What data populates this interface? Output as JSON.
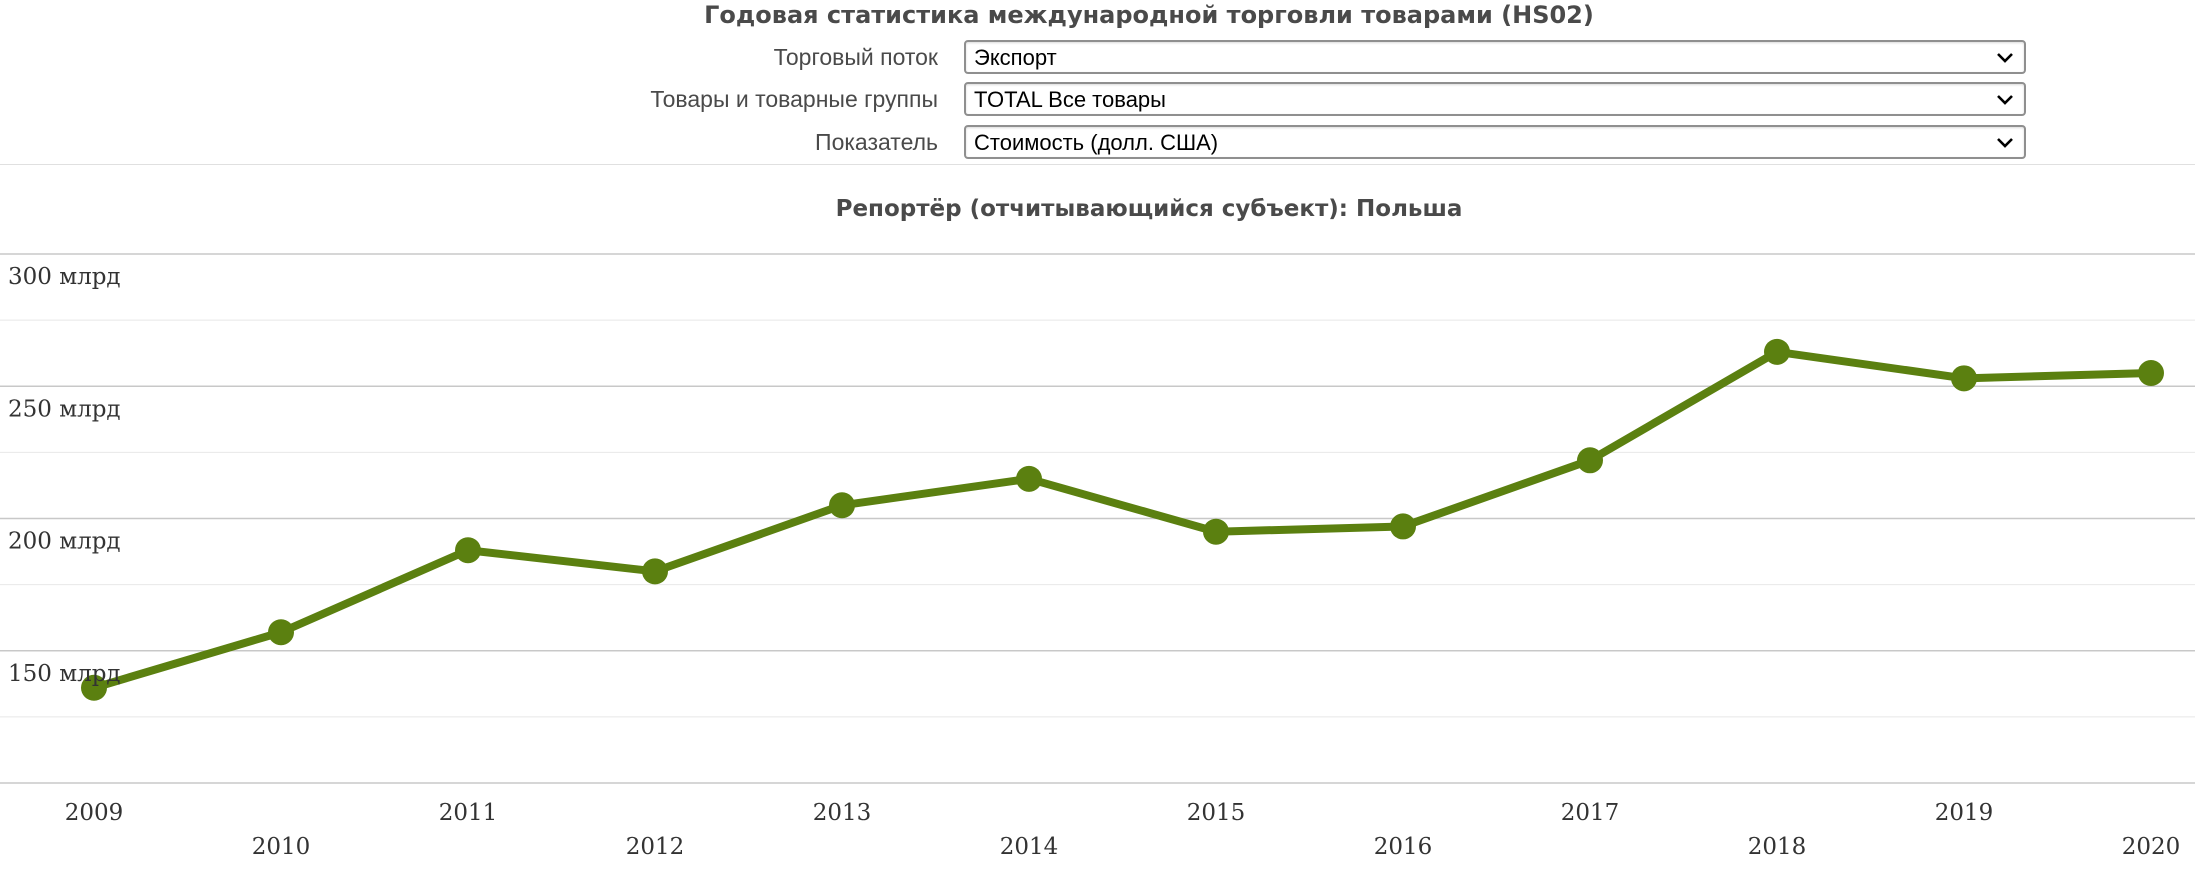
{
  "page": {
    "title": "Годовая статистика международной торговли товарами (HS02)"
  },
  "filters": [
    {
      "label": "Торговый поток",
      "value": "Экспорт"
    },
    {
      "label": "Товары и товарные группы",
      "value": "TOTAL Все товары"
    },
    {
      "label": "Показатель",
      "value": "Стоимость (долл. США)"
    }
  ],
  "colors": {
    "series": "#5b8010"
  },
  "chart_data": {
    "type": "line",
    "title": "Репортёр (отчитывающийся субъект): Польша",
    "xlabel": "",
    "ylabel": "",
    "x": [
      2009,
      2010,
      2011,
      2012,
      2013,
      2014,
      2015,
      2016,
      2017,
      2018,
      2019,
      2020
    ],
    "series": [
      {
        "values": [
          136,
          157,
          188,
          180,
          205,
          215,
          195,
          197,
          222,
          263,
          253,
          255
        ]
      }
    ],
    "ylim": [
      100,
      300
    ],
    "y_ticks": [
      150,
      200,
      250,
      300
    ],
    "y_tick_labels": [
      "150 млрд",
      "200 млрд",
      "250 млрд",
      "300 млрд"
    ],
    "x_tick_labels": [
      "2009",
      "2010",
      "2011",
      "2012",
      "2013",
      "2014",
      "2015",
      "2016",
      "2017",
      "2018",
      "2019",
      "2020"
    ],
    "grid": true,
    "legend": "none"
  }
}
